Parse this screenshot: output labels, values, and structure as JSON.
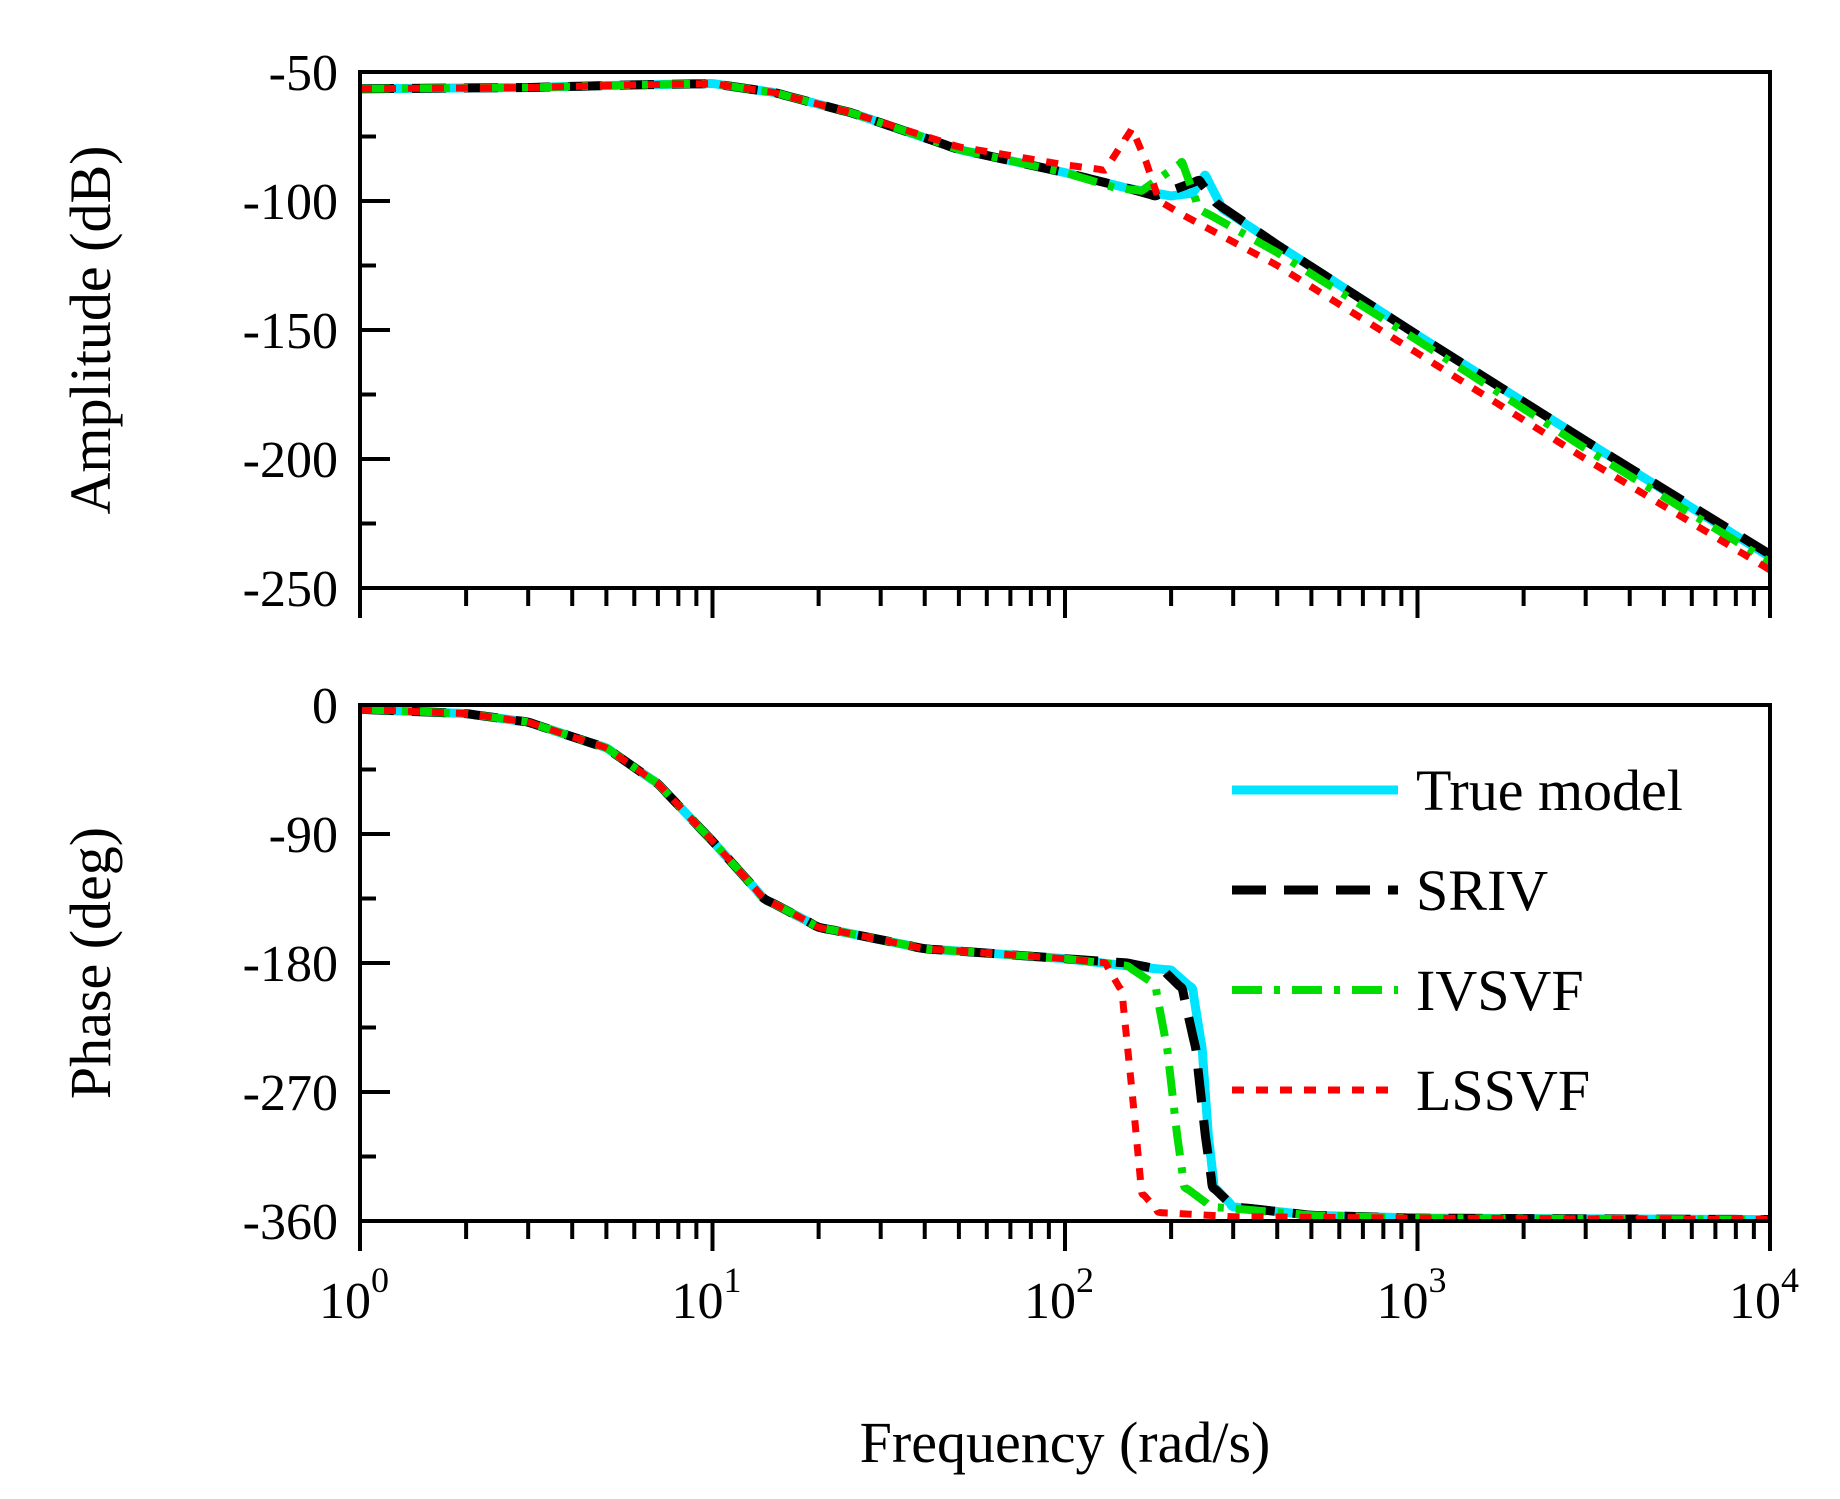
{
  "chart_data": {
    "type": "line",
    "xscale": "log",
    "xlim": [
      1,
      10000
    ],
    "xlabel": "Frequency (rad/s)",
    "x_tick_labels": [
      {
        "base": "10",
        "exp": "0",
        "value": 1
      },
      {
        "base": "10",
        "exp": "1",
        "value": 10
      },
      {
        "base": "10",
        "exp": "2",
        "value": 100
      },
      {
        "base": "10",
        "exp": "3",
        "value": 1000
      },
      {
        "base": "10",
        "exp": "4",
        "value": 10000
      }
    ],
    "series_styles": [
      {
        "name": "True model",
        "color": "#00e5ff",
        "dash": "solid"
      },
      {
        "name": "SRIV",
        "color": "#000000",
        "dash": "dash"
      },
      {
        "name": "IVSVF",
        "color": "#00dd00",
        "dash": "dashdot"
      },
      {
        "name": "LSSVF",
        "color": "#ff0000",
        "dash": "dot"
      }
    ],
    "panels": [
      {
        "name": "amplitude",
        "ylabel": "Amplitude (dB)",
        "ylim": [
          -250,
          -50
        ],
        "yticks": [
          -50,
          -100,
          -150,
          -200,
          -250
        ],
        "y_tick_labels": [
          "-50",
          "-100",
          "-150",
          "-200",
          "-250"
        ],
        "series": [
          {
            "name": "True model",
            "points": [
              [
                1,
                -56.5
              ],
              [
                3,
                -56
              ],
              [
                6,
                -55
              ],
              [
                10,
                -54.5
              ],
              [
                15,
                -58
              ],
              [
                25,
                -66
              ],
              [
                50,
                -80
              ],
              [
                100,
                -89
              ],
              [
                150,
                -95
              ],
              [
                200,
                -98
              ],
              [
                230,
                -97
              ],
              [
                250,
                -90
              ],
              [
                280,
                -103
              ],
              [
                400,
                -117
              ],
              [
                1000,
                -152
              ],
              [
                3000,
                -193
              ],
              [
                10000,
                -238
              ]
            ]
          },
          {
            "name": "SRIV",
            "points": [
              [
                1,
                -56.5
              ],
              [
                3,
                -56
              ],
              [
                6,
                -55
              ],
              [
                10,
                -54.5
              ],
              [
                15,
                -58
              ],
              [
                25,
                -66
              ],
              [
                50,
                -80
              ],
              [
                100,
                -89
              ],
              [
                150,
                -95
              ],
              [
                180,
                -98
              ],
              [
                200,
                -96
              ],
              [
                240,
                -92
              ],
              [
                270,
                -101
              ],
              [
                400,
                -117
              ],
              [
                1000,
                -152
              ],
              [
                3000,
                -193
              ],
              [
                10000,
                -237
              ]
            ]
          },
          {
            "name": "IVSVF",
            "points": [
              [
                1,
                -56.5
              ],
              [
                3,
                -56
              ],
              [
                6,
                -55
              ],
              [
                10,
                -54.5
              ],
              [
                15,
                -58
              ],
              [
                25,
                -66
              ],
              [
                50,
                -80
              ],
              [
                100,
                -89
              ],
              [
                140,
                -95
              ],
              [
                165,
                -96
              ],
              [
                200,
                -88
              ],
              [
                215,
                -85
              ],
              [
                240,
                -103
              ],
              [
                400,
                -120
              ],
              [
                1000,
                -154
              ],
              [
                3000,
                -196
              ],
              [
                10000,
                -240
              ]
            ]
          },
          {
            "name": "LSSVF",
            "points": [
              [
                1,
                -56.5
              ],
              [
                3,
                -56
              ],
              [
                6,
                -55
              ],
              [
                10,
                -54.5
              ],
              [
                15,
                -58
              ],
              [
                25,
                -66
              ],
              [
                50,
                -79
              ],
              [
                100,
                -86
              ],
              [
                130,
                -88
              ],
              [
                145,
                -78
              ],
              [
                155,
                -72
              ],
              [
                170,
                -85
              ],
              [
                185,
                -100
              ],
              [
                220,
                -106
              ],
              [
                400,
                -125
              ],
              [
                1000,
                -159
              ],
              [
                3000,
                -200
              ],
              [
                10000,
                -243
              ]
            ]
          }
        ]
      },
      {
        "name": "phase",
        "ylabel": "Phase (deg)",
        "ylim": [
          -360,
          0
        ],
        "yticks": [
          0,
          -90,
          -180,
          -270,
          -360
        ],
        "y_tick_labels": [
          "0",
          "-90",
          "-180",
          "-270",
          "-360"
        ],
        "series": [
          {
            "name": "True model",
            "points": [
              [
                1,
                -3
              ],
              [
                2,
                -6
              ],
              [
                3,
                -12
              ],
              [
                5,
                -30
              ],
              [
                7,
                -55
              ],
              [
                10,
                -95
              ],
              [
                14,
                -135
              ],
              [
                20,
                -155
              ],
              [
                40,
                -170
              ],
              [
                100,
                -177
              ],
              [
                150,
                -182
              ],
              [
                200,
                -185
              ],
              [
                230,
                -198
              ],
              [
                245,
                -240
              ],
              [
                255,
                -300
              ],
              [
                265,
                -336
              ],
              [
                300,
                -350
              ],
              [
                500,
                -356
              ],
              [
                1000,
                -358
              ],
              [
                10000,
                -359
              ]
            ]
          },
          {
            "name": "SRIV",
            "points": [
              [
                1,
                -3
              ],
              [
                2,
                -6
              ],
              [
                3,
                -12
              ],
              [
                5,
                -30
              ],
              [
                7,
                -55
              ],
              [
                10,
                -95
              ],
              [
                14,
                -135
              ],
              [
                20,
                -155
              ],
              [
                40,
                -170
              ],
              [
                100,
                -177
              ],
              [
                150,
                -180
              ],
              [
                190,
                -185
              ],
              [
                215,
                -198
              ],
              [
                235,
                -240
              ],
              [
                250,
                -300
              ],
              [
                262,
                -336
              ],
              [
                300,
                -350
              ],
              [
                500,
                -356
              ],
              [
                1000,
                -358
              ],
              [
                10000,
                -359
              ]
            ]
          },
          {
            "name": "IVSVF",
            "points": [
              [
                1,
                -3
              ],
              [
                2,
                -6
              ],
              [
                3,
                -12
              ],
              [
                5,
                -30
              ],
              [
                7,
                -55
              ],
              [
                10,
                -95
              ],
              [
                14,
                -135
              ],
              [
                20,
                -155
              ],
              [
                40,
                -170
              ],
              [
                100,
                -177
              ],
              [
                150,
                -182
              ],
              [
                180,
                -195
              ],
              [
                195,
                -240
              ],
              [
                208,
                -300
              ],
              [
                218,
                -336
              ],
              [
                260,
                -350
              ],
              [
                500,
                -356
              ],
              [
                1000,
                -358
              ],
              [
                10000,
                -359
              ]
            ]
          },
          {
            "name": "LSSVF",
            "points": [
              [
                1,
                -3
              ],
              [
                2,
                -6
              ],
              [
                3,
                -12
              ],
              [
                5,
                -30
              ],
              [
                7,
                -55
              ],
              [
                10,
                -95
              ],
              [
                14,
                -135
              ],
              [
                20,
                -155
              ],
              [
                40,
                -170
              ],
              [
                100,
                -177
              ],
              [
                130,
                -180
              ],
              [
                145,
                -200
              ],
              [
                155,
                -270
              ],
              [
                165,
                -340
              ],
              [
                185,
                -354
              ],
              [
                300,
                -357
              ],
              [
                1000,
                -358
              ],
              [
                10000,
                -359
              ]
            ]
          }
        ]
      }
    ],
    "legend": {
      "placement": "lower panel, right",
      "entries": [
        "True model",
        "SRIV",
        "IVSVF",
        "LSSVF"
      ]
    }
  }
}
